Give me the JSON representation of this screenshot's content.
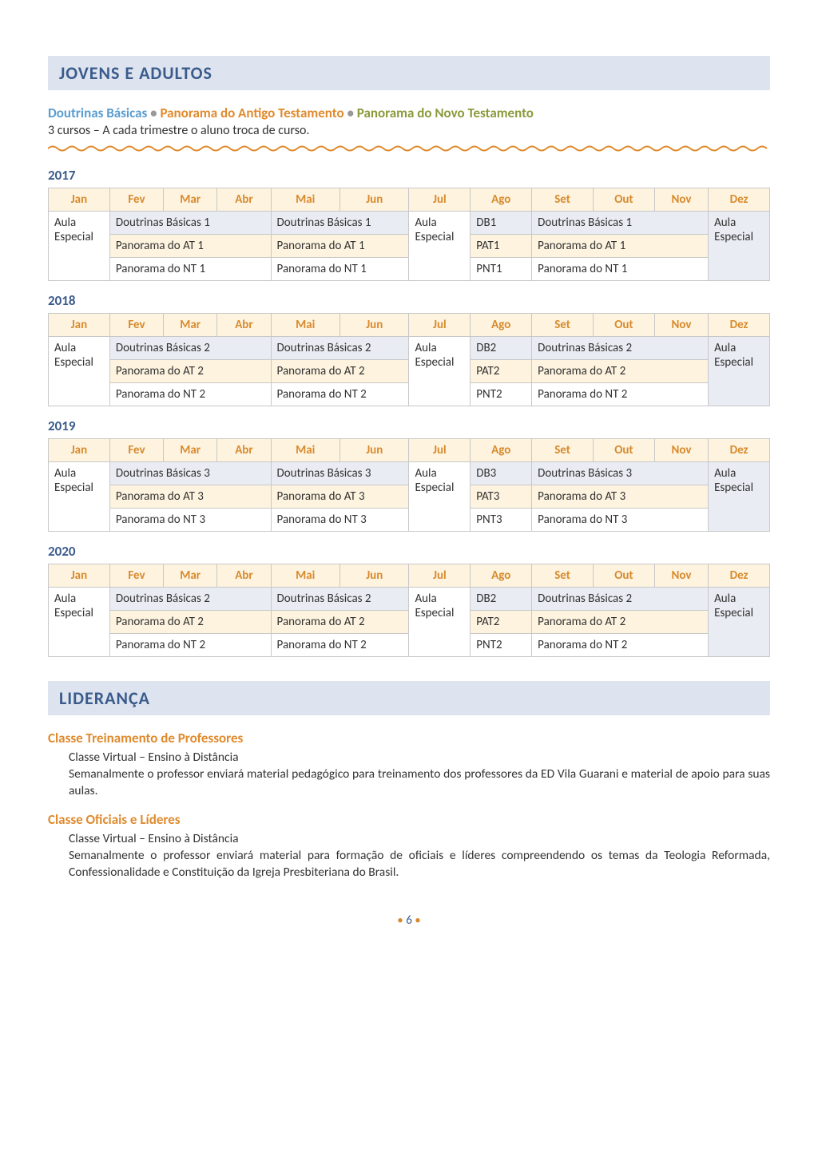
{
  "header": {
    "title": "JOVENS E ADULTOS"
  },
  "courseLine": {
    "course1": "Doutrinas Básicas",
    "course2": "Panorama do Antigo Testamento",
    "course3": "Panorama do Novo Testamento",
    "sep": "•"
  },
  "subtitle": "3 cursos – A cada trimestre o aluno troca de curso.",
  "months": [
    "Jan",
    "Fev",
    "Mar",
    "Abr",
    "Mai",
    "Jun",
    "Jul",
    "Ago",
    "Set",
    "Out",
    "Nov",
    "Dez"
  ],
  "years": [
    {
      "year": "2017",
      "rows": [
        {
          "bg": "bg-gray",
          "jan": "Aula Especial",
          "q1": "Doutrinas Básicas 1",
          "q2": "Doutrinas Básicas 1",
          "jul": "Aula Especial",
          "ago": "DB1",
          "q4": "Doutrinas Básicas 1",
          "dez": "Aula Especial"
        },
        {
          "bg": "bg-yellow",
          "jan": "",
          "q1": "Panorama do AT 1",
          "q2": "Panorama do AT 1",
          "jul": "",
          "ago": "PAT1",
          "q4": "Panorama do AT 1",
          "dez": ""
        },
        {
          "bg": "bg-white",
          "jan": "",
          "q1": "Panorama do NT 1",
          "q2": "Panorama do NT 1",
          "jul": "",
          "ago": "PNT1",
          "q4": "Panorama do NT 1",
          "dez": ""
        }
      ]
    },
    {
      "year": "2018",
      "rows": [
        {
          "bg": "bg-gray",
          "jan": "Aula Especial",
          "q1": "Doutrinas Básicas 2",
          "q2": "Doutrinas Básicas 2",
          "jul": "Aula Especial",
          "ago": "DB2",
          "q4": "Doutrinas Básicas 2",
          "dez": "Aula Especial"
        },
        {
          "bg": "bg-yellow",
          "jan": "",
          "q1": "Panorama do AT 2",
          "q2": "Panorama do AT 2",
          "jul": "",
          "ago": "PAT2",
          "q4": "Panorama do AT 2",
          "dez": ""
        },
        {
          "bg": "bg-white",
          "jan": "",
          "q1": "Panorama do NT 2",
          "q2": "Panorama do NT 2",
          "jul": "",
          "ago": "PNT2",
          "q4": "Panorama do NT 2",
          "dez": ""
        }
      ]
    },
    {
      "year": "2019",
      "rows": [
        {
          "bg": "bg-gray",
          "jan": "Aula Especial",
          "q1": "Doutrinas Básicas 3",
          "q2": "Doutrinas Básicas 3",
          "jul": "Aula Especial",
          "ago": "DB3",
          "q4": "Doutrinas Básicas 3",
          "dez": "Aula Especial"
        },
        {
          "bg": "bg-yellow",
          "jan": "",
          "q1": "Panorama do AT 3",
          "q2": "Panorama do AT 3",
          "jul": "",
          "ago": "PAT3",
          "q4": "Panorama do AT 3",
          "dez": ""
        },
        {
          "bg": "bg-white",
          "jan": "",
          "q1": "Panorama do NT 3",
          "q2": "Panorama do NT 3",
          "jul": "",
          "ago": "PNT3",
          "q4": "Panorama do NT 3",
          "dez": ""
        }
      ]
    },
    {
      "year": "2020",
      "rows": [
        {
          "bg": "bg-gray",
          "jan": "Aula Especial",
          "q1": "Doutrinas Básicas 2",
          "q2": "Doutrinas Básicas 2",
          "jul": "Aula Especial",
          "ago": "DB2",
          "q4": "Doutrinas Básicas 2",
          "dez": "Aula Especial"
        },
        {
          "bg": "bg-yellow",
          "jan": "",
          "q1": "Panorama do AT 2",
          "q2": "Panorama do AT 2",
          "jul": "",
          "ago": "PAT2",
          "q4": "Panorama do AT 2",
          "dez": ""
        },
        {
          "bg": "bg-white",
          "jan": "",
          "q1": "Panorama do NT 2",
          "q2": "Panorama do NT 2",
          "jul": "",
          "ago": "PNT2",
          "q4": "Panorama do NT 2",
          "dez": ""
        }
      ]
    }
  ],
  "lideranca": {
    "title": "LIDERANÇA",
    "sections": [
      {
        "heading": "Classe Treinamento de Professores",
        "line1": "Classe Virtual – Ensino à Distância",
        "body": "Semanalmente o professor enviará material pedagógico para treinamento dos professores da ED Vila Guarani e material de apoio para suas aulas."
      },
      {
        "heading": "Classe Oficiais e Líderes",
        "line1": "Classe Virtual – Ensino à Distância",
        "body": "Semanalmente o professor enviará material para formação de oficiais e líderes compreendendo os temas da Teologia Reformada, Confessionalidade e Constituição da Igreja Presbiteriana do Brasil."
      }
    ]
  },
  "pageNumber": "6",
  "colors": {
    "headerBg": "#dde4ef",
    "headerText": "#3b5b8c",
    "orange": "#e08a2c",
    "olive": "#8a9a3a",
    "blue": "#5a9dd0",
    "thBg": "#fdf3df",
    "thText": "#d88a2c",
    "rowGray": "#e9ecf2",
    "rowYellow": "#fdf3df",
    "border": "#c8c8c8"
  }
}
